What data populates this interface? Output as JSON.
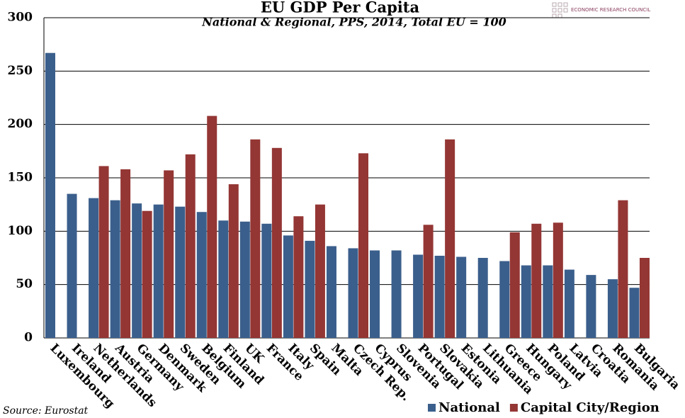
{
  "chart_data": {
    "type": "bar",
    "title": "EU GDP Per Capita",
    "subtitle": "National & Regional, PPS, 2014, Total EU = 100",
    "source": "Source: Eurostat",
    "logo": "ECONOMIC RESEARCH COUNCIL",
    "categories": [
      "Luxembourg",
      "Ireland",
      "Netherlands",
      "Austria",
      "Germany",
      "Denmark",
      "Sweden",
      "Belgium",
      "Finland",
      "UK",
      "France",
      "Italy",
      "Spain",
      "Malta",
      "Czech Rep.",
      "Cyprus",
      "Slovenia",
      "Portugal",
      "Slovakia",
      "Estonia",
      "Lithuania",
      "Greece",
      "Hungary",
      "Poland",
      "Latvia",
      "Croatia",
      "Romania",
      "Bulgaria"
    ],
    "series": [
      {
        "name": "National",
        "color": "#3b5f8c",
        "values": [
          267,
          135,
          131,
          129,
          126,
          125,
          123,
          118,
          110,
          109,
          107,
          96,
          91,
          86,
          84,
          82,
          82,
          78,
          77,
          76,
          75,
          72,
          68,
          68,
          64,
          59,
          55,
          47
        ]
      },
      {
        "name": "Capital City/Region",
        "color": "#943634",
        "values": [
          null,
          null,
          161,
          158,
          119,
          157,
          172,
          208,
          144,
          186,
          178,
          114,
          125,
          null,
          173,
          null,
          null,
          106,
          186,
          null,
          null,
          99,
          107,
          108,
          null,
          null,
          129,
          75
        ]
      }
    ],
    "ylim": [
      0,
      300
    ],
    "yticks": [
      0,
      50,
      100,
      150,
      200,
      250,
      300
    ],
    "grid": true
  }
}
